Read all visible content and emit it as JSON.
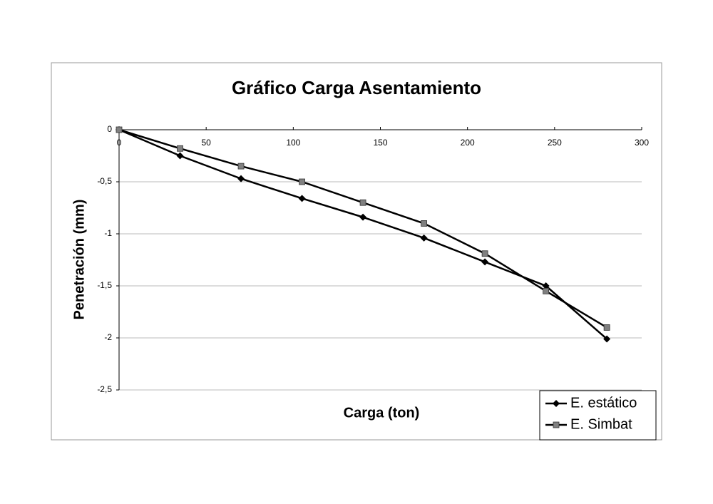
{
  "chart_data": {
    "type": "line",
    "title": "Gráfico Carga Asentamiento",
    "x_label": "Carga (ton)",
    "y_label": "Penetración (mm)",
    "x": [
      0,
      35,
      70,
      105,
      140,
      175,
      210,
      245,
      280
    ],
    "series": [
      {
        "name": "E. estático",
        "color": "#000000",
        "marker": "diamond",
        "marker_color": "#000000",
        "values": [
          0,
          -0.25,
          -0.47,
          -0.66,
          -0.84,
          -1.04,
          -1.27,
          -1.5,
          -2.01
        ]
      },
      {
        "name": "E. Simbat",
        "color": "#000000",
        "marker": "square",
        "marker_color": "#808080",
        "values": [
          0,
          -0.18,
          -0.35,
          -0.5,
          -0.7,
          -0.9,
          -1.19,
          -1.55,
          -1.9
        ]
      }
    ],
    "xlim": [
      0,
      300
    ],
    "xticks": [
      0,
      50,
      100,
      150,
      200,
      250,
      300
    ],
    "ylim": [
      -2.5,
      0
    ],
    "yticks": [
      0,
      {
        "value": -0.5,
        "label": "-0,5"
      },
      -1,
      {
        "value": -1.5,
        "label": "-1,5"
      },
      -2,
      {
        "value": -2.5,
        "label": "-2,5"
      }
    ],
    "grid": true,
    "legend": "lower right"
  }
}
